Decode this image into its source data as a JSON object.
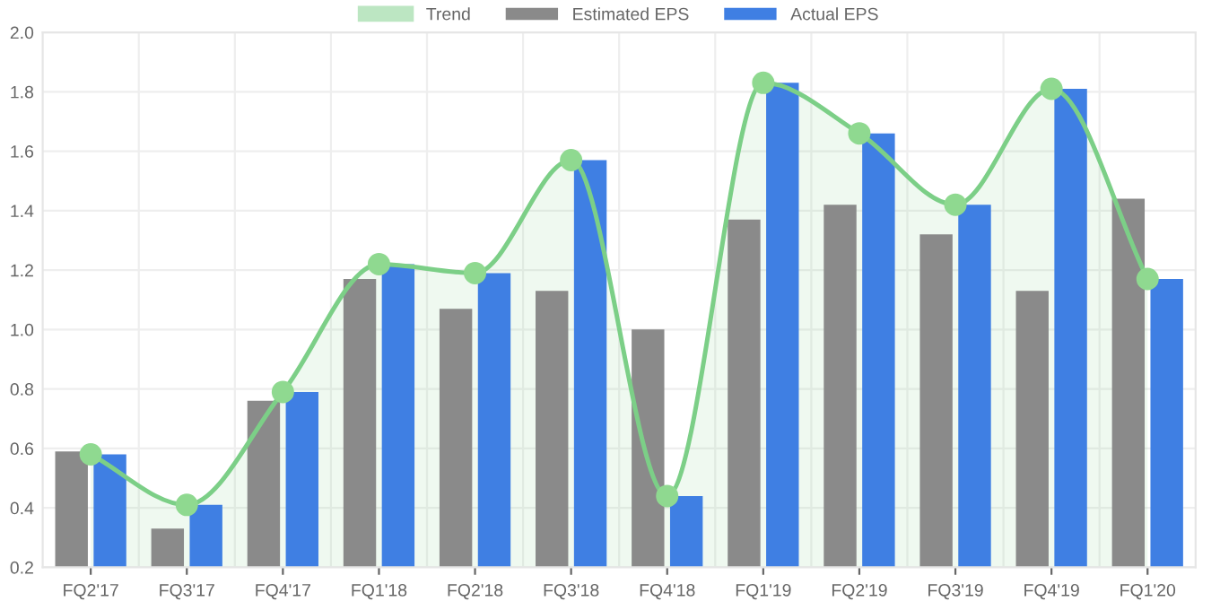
{
  "chart_data": {
    "type": "bar",
    "categories": [
      "FQ2'17",
      "FQ3'17",
      "FQ4'17",
      "FQ1'18",
      "FQ2'18",
      "FQ3'18",
      "FQ4'18",
      "FQ1'19",
      "FQ2'19",
      "FQ3'19",
      "FQ4'19",
      "FQ1'20"
    ],
    "series": [
      {
        "name": "Trend",
        "type": "area",
        "color": "#7ccf87",
        "marker": "circle",
        "values": [
          0.58,
          0.41,
          0.79,
          1.22,
          1.19,
          1.57,
          0.44,
          1.83,
          1.66,
          1.42,
          1.81,
          1.17
        ]
      },
      {
        "name": "Estimated EPS",
        "color": "#8a8a8a",
        "values": [
          0.59,
          0.33,
          0.76,
          1.17,
          1.07,
          1.13,
          1.0,
          1.37,
          1.42,
          1.32,
          1.13,
          1.44
        ]
      },
      {
        "name": "Actual EPS",
        "color": "#3f7fe3",
        "values": [
          0.58,
          0.41,
          0.79,
          1.22,
          1.19,
          1.57,
          0.44,
          1.83,
          1.66,
          1.42,
          1.81,
          1.17
        ]
      }
    ],
    "ylim": [
      0.2,
      2.0
    ],
    "yticks": [
      0.2,
      0.4,
      0.6,
      0.8,
      {
        "value": 1,
        "label": "1.0"
      },
      1.2,
      1.4,
      1.6,
      1.8,
      {
        "value": 2,
        "label": "2.0"
      }
    ],
    "grid": true,
    "legend": "top"
  }
}
